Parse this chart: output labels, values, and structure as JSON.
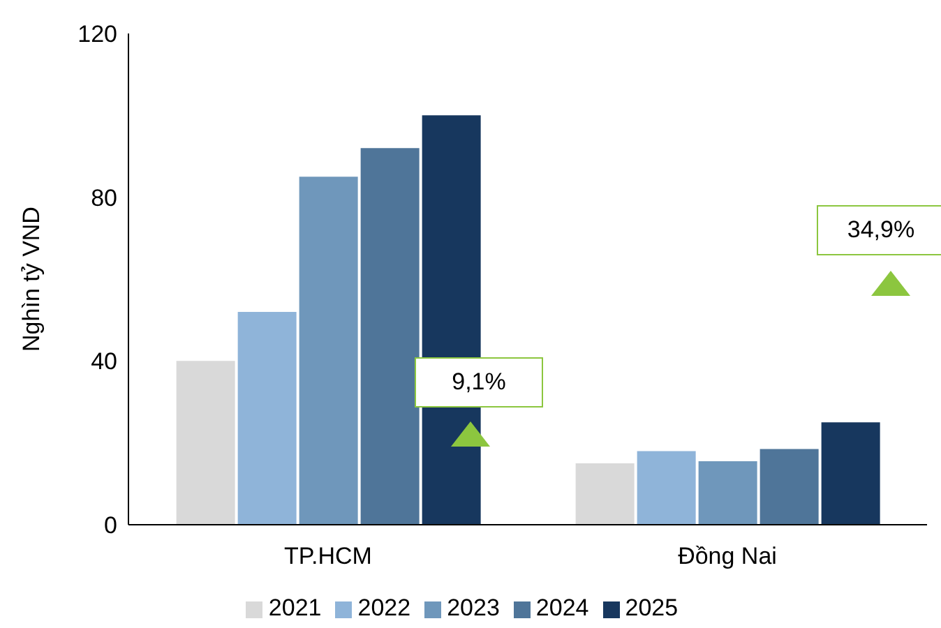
{
  "chart_data": {
    "type": "bar",
    "ylabel": "Nghìn tỷ VND",
    "categories": [
      "TP.HCM",
      "Đồng Nai"
    ],
    "series": [
      {
        "name": "2021",
        "color": "#d9d9d9",
        "values": [
          40,
          15
        ]
      },
      {
        "name": "2022",
        "color": "#8fb4d9",
        "values": [
          52,
          18
        ]
      },
      {
        "name": "2023",
        "color": "#6f97bb",
        "values": [
          85,
          15.5
        ]
      },
      {
        "name": "2024",
        "color": "#4f7599",
        "values": [
          92,
          18.5
        ]
      },
      {
        "name": "2025",
        "color": "#17375e",
        "values": [
          100,
          25
        ]
      }
    ],
    "ylim": [
      0,
      120
    ],
    "yticks": [
      0,
      40,
      80,
      120
    ],
    "grid": false,
    "legend": "bottom",
    "annotations": [
      "9,1%",
      "34,9%"
    ]
  }
}
